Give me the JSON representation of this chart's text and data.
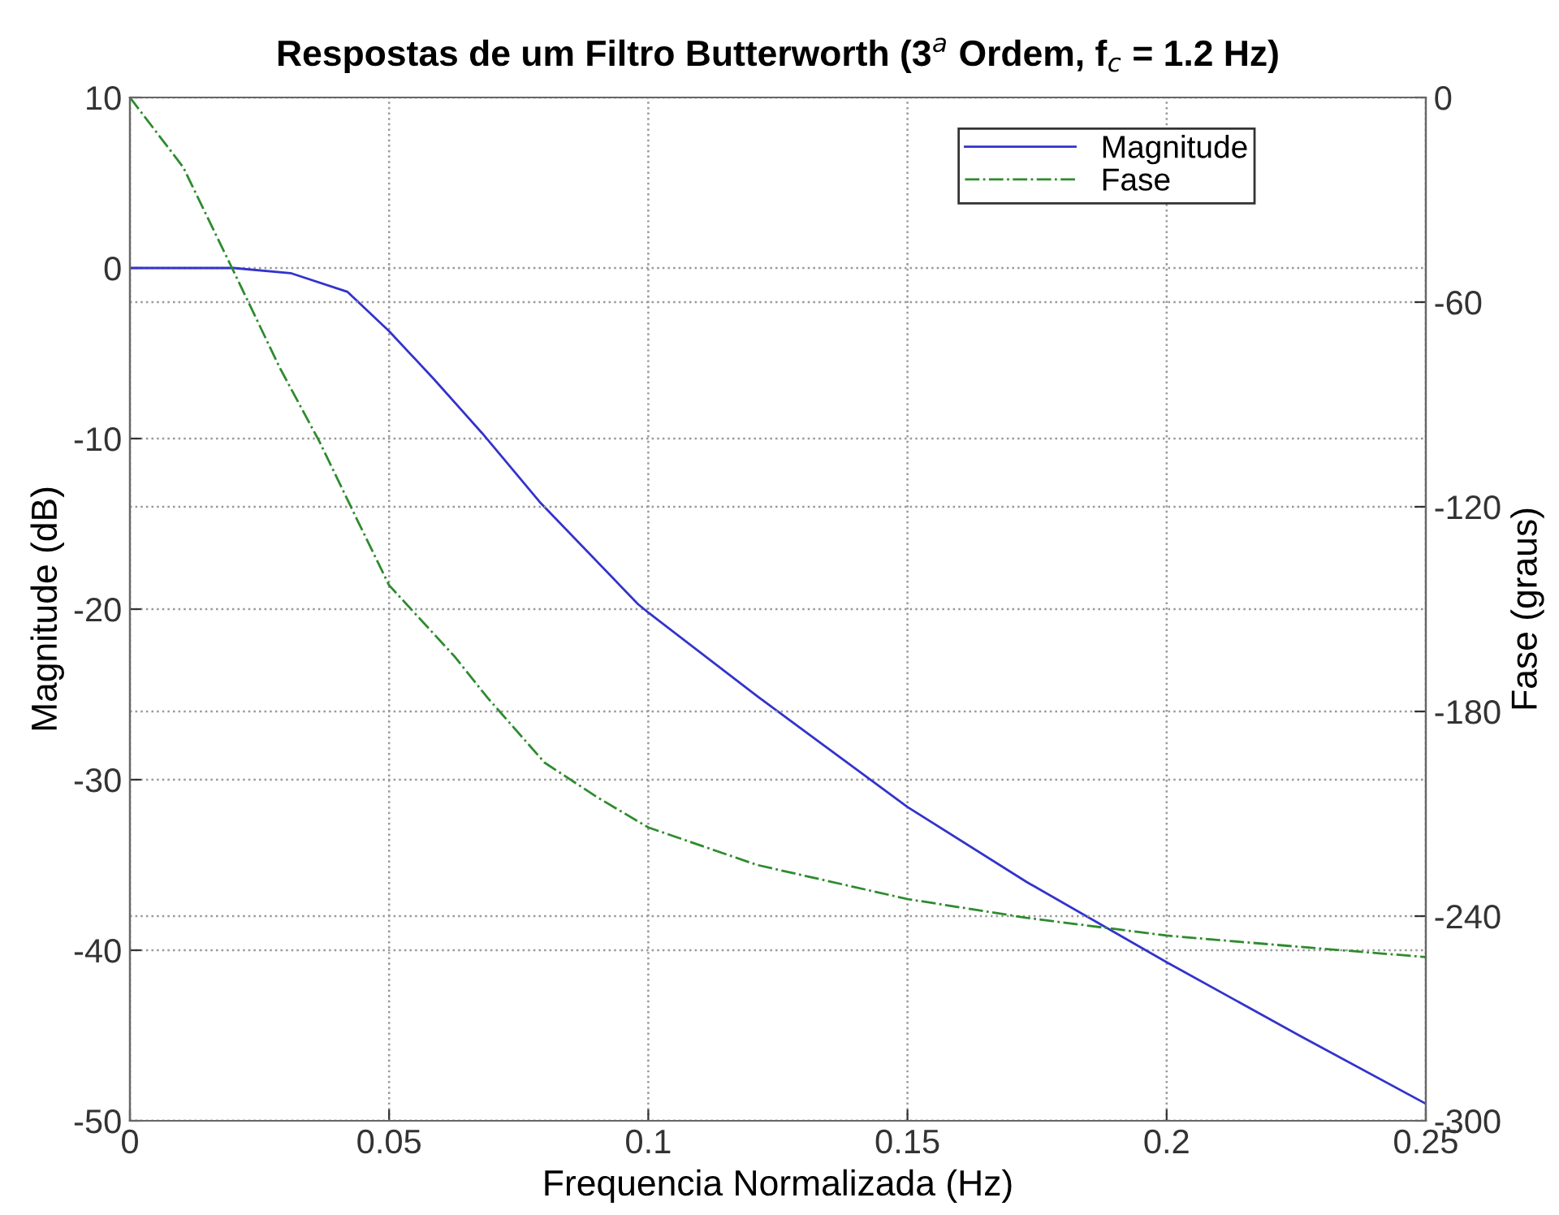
{
  "chart_data": {
    "type": "line",
    "title": "Respostas de um Filtro Butterworth (3$^{a}$ Ordem, f$_{c}$ = 1.2 Hz)",
    "xlabel": "Frequencia Normalizada (Hz)",
    "ylabel": "Magnitude (dB)",
    "y2label": "Fase (graus)",
    "series": [
      {
        "name": "Magnitude",
        "color": "#3333cc",
        "line_style": "solid",
        "x": [
          0,
          0.01,
          0.02,
          0.031,
          0.042,
          0.05,
          0.0586,
          0.068,
          0.0793,
          0.098,
          0.1,
          0.121,
          0.15,
          0.173,
          0.2,
          0.2256,
          0.25
        ],
        "values": [
          0,
          0,
          0,
          -0.3,
          -1.4,
          -3.7,
          -6.5,
          -9.7,
          -13.8,
          -19.7,
          -20.2,
          -25.1,
          -31.6,
          -36.0,
          -40.7,
          -45.0,
          -49.0
        ]
      },
      {
        "name": "Fase",
        "color": "#2e8b2e",
        "line_style": "dashdot",
        "axis": "y2",
        "x": [
          0,
          0.0103,
          0.0197,
          0.029,
          0.0366,
          0.0439,
          0.05,
          0.0627,
          0.069,
          0.08,
          0.09,
          0.1,
          0.121,
          0.15,
          0.173,
          0.2,
          0.2256,
          0.25
        ],
        "values": [
          0,
          -20.5,
          -50,
          -79.5,
          -101,
          -124,
          -143,
          -164,
          -176,
          -195,
          -205,
          -214,
          -225,
          -235,
          -240.5,
          -245.7,
          -249,
          -252
        ]
      }
    ],
    "xlim": [
      0,
      0.25
    ],
    "xticks": [
      0,
      0.05,
      0.1,
      0.15,
      0.2,
      0.25
    ],
    "ylim": [
      -50,
      10
    ],
    "yticks": [
      -50,
      -40,
      -30,
      -20,
      -10,
      0,
      10
    ],
    "y2lim": [
      -300,
      0
    ],
    "y2ticks": [
      -300,
      -240,
      -180,
      -120,
      -60,
      0
    ],
    "grid": true,
    "legend": "top right"
  }
}
